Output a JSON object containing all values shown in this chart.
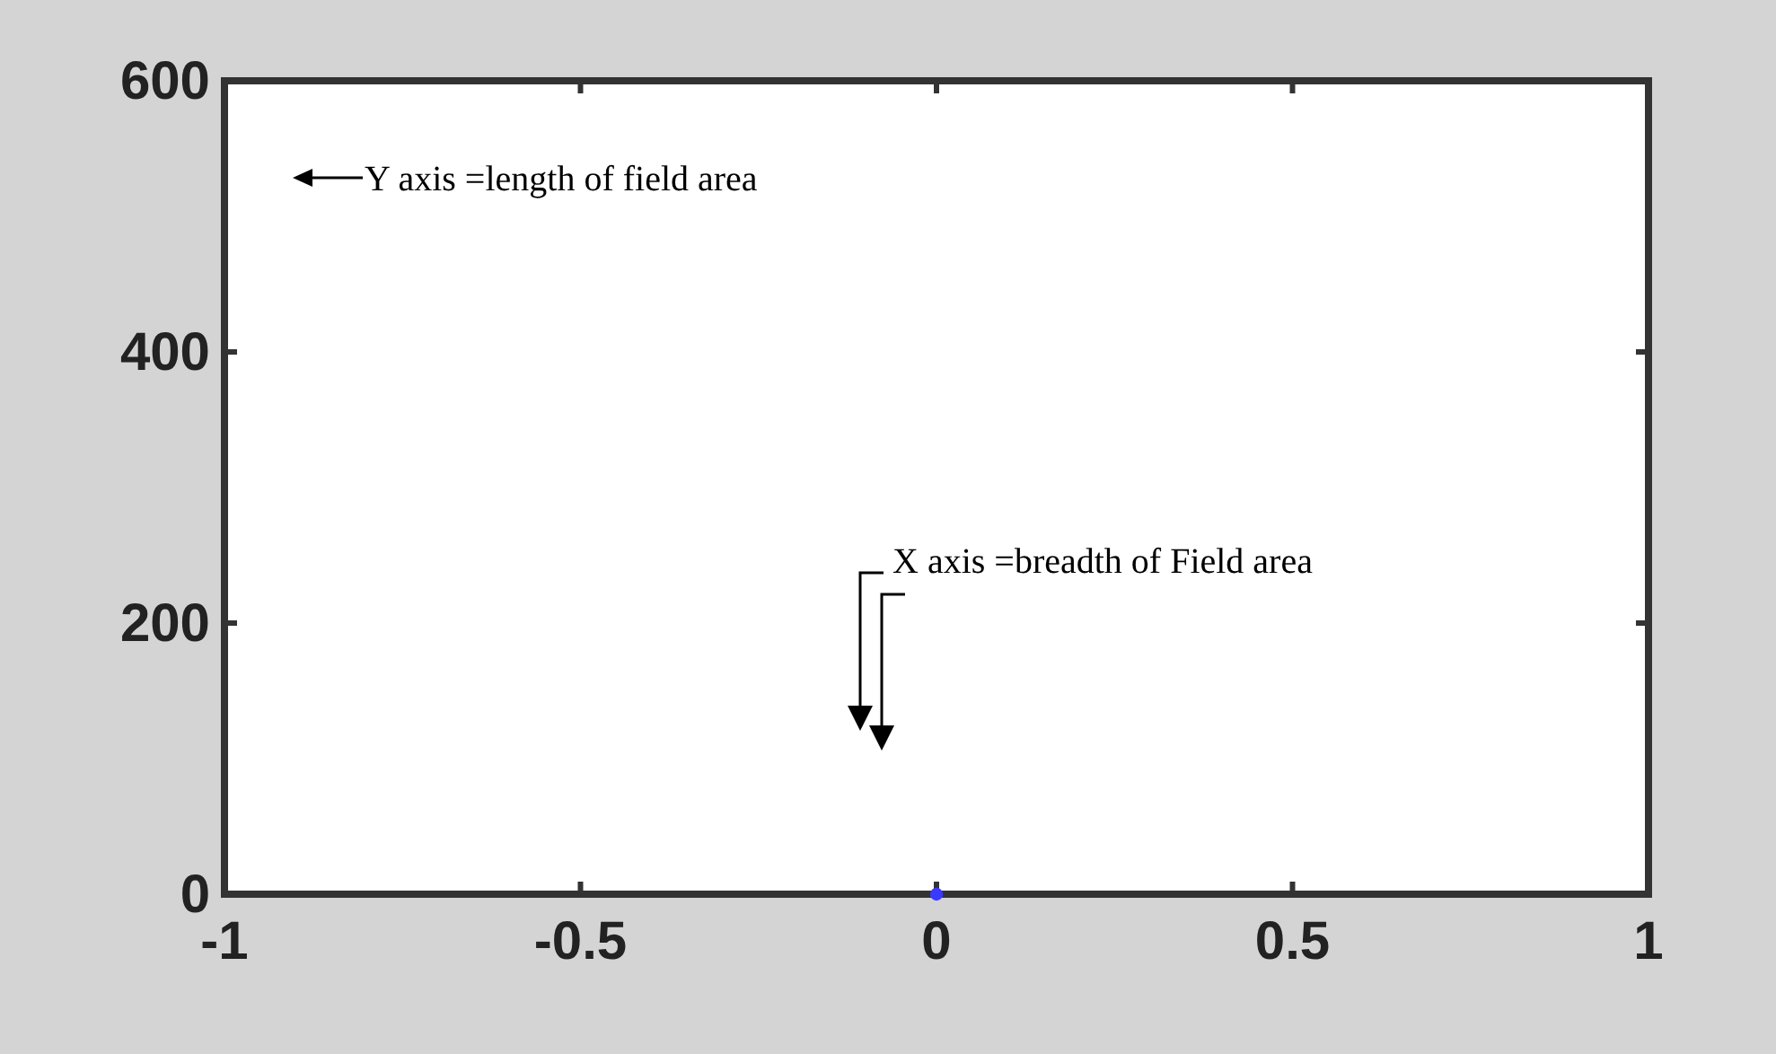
{
  "chart_data": {
    "type": "scatter",
    "x": [
      0
    ],
    "values": [
      0
    ],
    "color": "#3a3aff",
    "marker": "circle",
    "xlim": [
      -1,
      1
    ],
    "xticks": [
      -1,
      -0.5,
      0,
      0.5,
      1
    ],
    "ylim": [
      0,
      600
    ],
    "yticks": [
      0,
      200,
      400,
      600
    ],
    "grid": false,
    "annotations": [
      "Y axis =length of field area",
      "X axis =breadth of Field area"
    ]
  }
}
